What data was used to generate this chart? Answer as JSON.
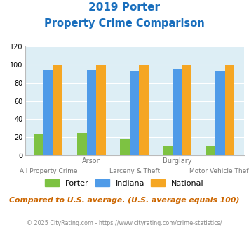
{
  "title_line1": "2019 Porter",
  "title_line2": "Property Crime Comparison",
  "title_color": "#1a6fbd",
  "groups": [
    "All Property Crime",
    "Arson",
    "Larceny & Theft",
    "Burglary",
    "Motor Vehicle Theft"
  ],
  "porter_values": [
    23,
    25,
    18,
    10,
    10
  ],
  "indiana_values": [
    94,
    94,
    93,
    95,
    93
  ],
  "national_values": [
    100,
    100,
    100,
    100,
    100
  ],
  "porter_color": "#7dc242",
  "indiana_color": "#4f9be8",
  "national_color": "#f5a623",
  "ylim": [
    0,
    120
  ],
  "yticks": [
    0,
    20,
    40,
    60,
    80,
    100,
    120
  ],
  "plot_bg": "#ddeef5",
  "footer_text": "Compared to U.S. average. (U.S. average equals 100)",
  "footer_color": "#cc6600",
  "copyright_text": "© 2025 CityRating.com - https://www.cityrating.com/crime-statistics/",
  "copyright_color": "#888888",
  "legend_labels": [
    "Porter",
    "Indiana",
    "National"
  ],
  "top_xlabels": [
    [
      1,
      "Arson"
    ],
    [
      3,
      "Burglary"
    ]
  ],
  "bottom_xlabels": [
    [
      0,
      "All Property Crime"
    ],
    [
      2,
      "Larceny & Theft"
    ],
    [
      4,
      "Motor Vehicle Theft"
    ]
  ]
}
